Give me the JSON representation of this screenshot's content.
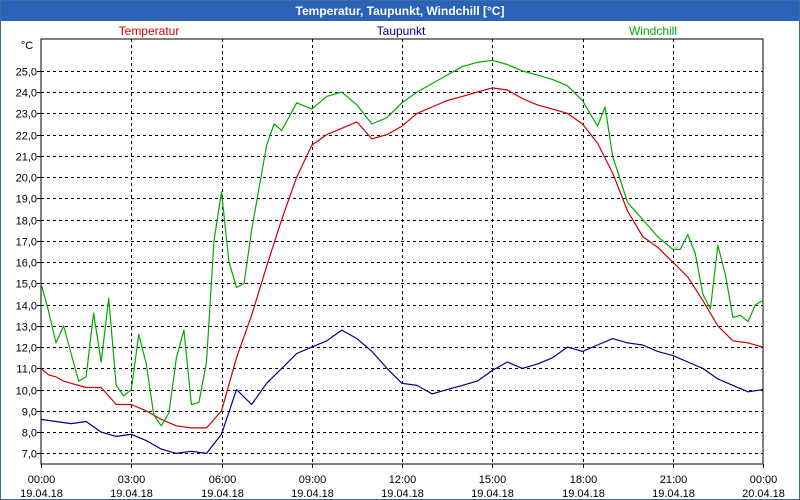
{
  "window": {
    "title": "Temperatur, Taupunkt, Windchill [°C]"
  },
  "chart_data": {
    "type": "line",
    "title": "Temperatur, Taupunkt, Windchill [°C]",
    "ylabel": "°C",
    "ylim": [
      6.5,
      26.5
    ],
    "yticks": [
      7.0,
      8.0,
      9.0,
      10.0,
      11.0,
      12.0,
      13.0,
      14.0,
      15.0,
      16.0,
      17.0,
      18.0,
      19.0,
      20.0,
      21.0,
      22.0,
      23.0,
      24.0,
      25.0
    ],
    "ytick_labels": [
      "7,0",
      "8,0",
      "9,0",
      "10,0",
      "11,0",
      "12,0",
      "13,0",
      "14,0",
      "15,0",
      "16,0",
      "17,0",
      "18,0",
      "19,0",
      "20,0",
      "21,0",
      "22,0",
      "23,0",
      "24,0",
      "25,0"
    ],
    "xlim": [
      0,
      24
    ],
    "xticks": [
      0,
      3,
      6,
      9,
      12,
      15,
      18,
      21,
      24
    ],
    "xtick_labels": [
      {
        "time": "00:00",
        "date": "19.04.18"
      },
      {
        "time": "03:00",
        "date": "19.04.18"
      },
      {
        "time": "06:00",
        "date": "19.04.18"
      },
      {
        "time": "09:00",
        "date": "19.04.18"
      },
      {
        "time": "12:00",
        "date": "19.04.18"
      },
      {
        "time": "15:00",
        "date": "19.04.18"
      },
      {
        "time": "18:00",
        "date": "19.04.18"
      },
      {
        "time": "21:00",
        "date": "19.04.18"
      },
      {
        "time": "00:00",
        "date": "20.04.18"
      }
    ],
    "grid": true,
    "legend_placement": "top",
    "series": [
      {
        "name": "Temperatur",
        "color": "#cc0000",
        "x": [
          0,
          0.25,
          0.5,
          0.75,
          1,
          1.5,
          2,
          2.5,
          3,
          3.5,
          4,
          4.5,
          5,
          5.5,
          6,
          6.5,
          7,
          7.5,
          8,
          8.5,
          9,
          9.5,
          10,
          10.5,
          11,
          11.5,
          12,
          12.5,
          13,
          13.5,
          14,
          14.5,
          15,
          15.5,
          16,
          16.5,
          17,
          17.5,
          18,
          18.5,
          19,
          19.5,
          20,
          20.5,
          21,
          21.5,
          22,
          22.5,
          23,
          23.5,
          24
        ],
        "y": [
          11.0,
          10.7,
          10.6,
          10.4,
          10.3,
          10.1,
          10.1,
          9.3,
          9.3,
          9.0,
          8.6,
          8.3,
          8.2,
          8.2,
          9.0,
          11.5,
          13.5,
          15.8,
          18.0,
          20.0,
          21.5,
          22.0,
          22.3,
          22.6,
          21.8,
          22.0,
          22.4,
          23.0,
          23.3,
          23.6,
          23.8,
          24.0,
          24.2,
          24.1,
          23.7,
          23.4,
          23.2,
          23.0,
          22.5,
          21.6,
          20.2,
          18.4,
          17.2,
          16.7,
          16.0,
          15.3,
          14.2,
          13.0,
          12.3,
          12.2,
          12.0
        ]
      },
      {
        "name": "Taupunkt",
        "color": "#00008b",
        "x": [
          0,
          0.5,
          1,
          1.5,
          2,
          2.5,
          3,
          3.5,
          4,
          4.5,
          5,
          5.5,
          6,
          6.5,
          7,
          7.5,
          8,
          8.5,
          9,
          9.5,
          10,
          10.5,
          11,
          11.5,
          12,
          12.5,
          13,
          13.5,
          14,
          14.5,
          15,
          15.5,
          16,
          16.5,
          17,
          17.5,
          18,
          18.5,
          19,
          19.5,
          20,
          20.5,
          21,
          21.5,
          22,
          22.5,
          23,
          23.5,
          24
        ],
        "y": [
          8.6,
          8.5,
          8.4,
          8.5,
          8.0,
          7.8,
          7.9,
          7.6,
          7.2,
          7.0,
          7.1,
          7.0,
          7.9,
          10.0,
          9.3,
          10.3,
          11.0,
          11.7,
          12.0,
          12.3,
          12.8,
          12.4,
          11.8,
          11.0,
          10.3,
          10.2,
          9.8,
          10.0,
          10.2,
          10.4,
          10.9,
          11.3,
          11.0,
          11.2,
          11.5,
          12.0,
          11.8,
          12.1,
          12.4,
          12.2,
          12.1,
          11.8,
          11.6,
          11.3,
          11.0,
          10.5,
          10.2,
          9.9,
          10.0
        ]
      },
      {
        "name": "Windchill",
        "color": "#00aa00",
        "x": [
          0,
          0.25,
          0.5,
          0.75,
          1,
          1.25,
          1.5,
          1.75,
          2,
          2.25,
          2.5,
          2.75,
          3,
          3.25,
          3.5,
          3.75,
          4,
          4.25,
          4.5,
          4.75,
          5,
          5.25,
          5.5,
          5.75,
          6,
          6.25,
          6.5,
          6.75,
          7,
          7.25,
          7.5,
          7.75,
          8,
          8.5,
          9,
          9.5,
          10,
          10.5,
          11,
          11.5,
          12,
          12.5,
          13,
          13.5,
          14,
          14.5,
          15,
          15.5,
          16,
          16.5,
          17,
          17.5,
          18,
          18.25,
          18.5,
          18.75,
          19,
          19.5,
          20,
          20.5,
          21,
          21.25,
          21.5,
          21.75,
          22,
          22.25,
          22.5,
          22.75,
          23,
          23.25,
          23.5,
          23.75,
          24
        ],
        "y": [
          15.0,
          13.7,
          12.2,
          13.0,
          11.7,
          10.4,
          10.6,
          13.6,
          11.3,
          14.3,
          10.2,
          9.7,
          10.0,
          12.6,
          11.2,
          8.8,
          8.3,
          8.9,
          11.5,
          12.8,
          9.3,
          9.4,
          11.3,
          17.0,
          19.3,
          16.0,
          14.8,
          15.0,
          17.5,
          19.5,
          21.5,
          22.5,
          22.2,
          23.5,
          23.2,
          23.8,
          24.0,
          23.4,
          22.5,
          22.8,
          23.5,
          24.0,
          24.4,
          24.8,
          25.2,
          25.4,
          25.5,
          25.3,
          25.0,
          24.8,
          24.6,
          24.3,
          23.6,
          23.0,
          22.4,
          23.3,
          21.0,
          18.8,
          18.0,
          17.2,
          16.6,
          16.6,
          17.3,
          16.4,
          14.5,
          13.8,
          16.8,
          15.4,
          13.4,
          13.5,
          13.2,
          14.0,
          14.2
        ]
      }
    ]
  }
}
